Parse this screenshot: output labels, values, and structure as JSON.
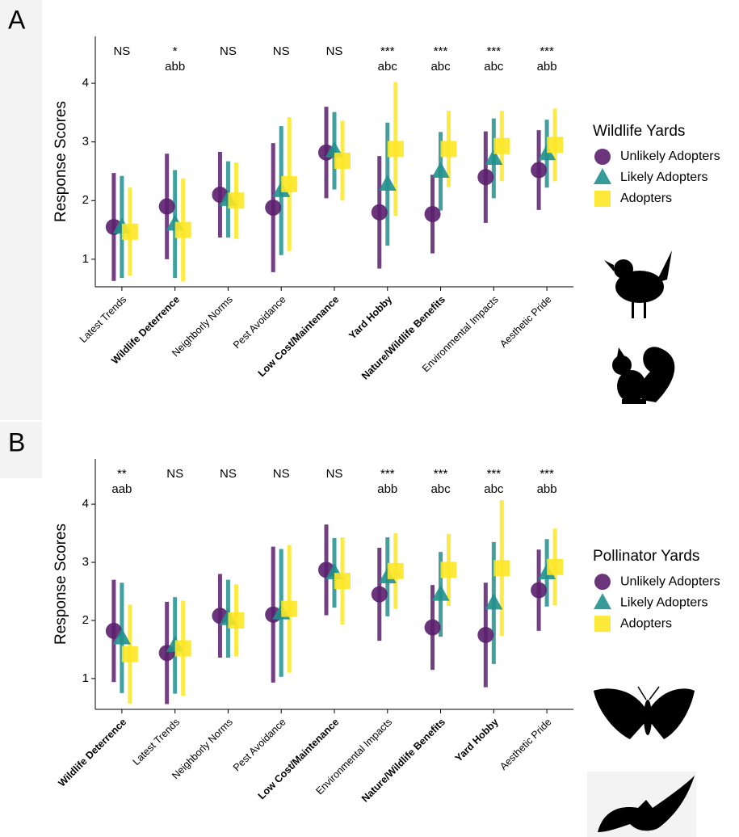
{
  "chart_data": [
    {
      "type": "pointrange",
      "panel": "A",
      "legend_title": "Wildlife Yards",
      "y_label": "Response Scores",
      "categories": [
        "Latest Trends",
        "Wildlife Deterrence",
        "Neighborly Norms",
        "Pest Avoidance",
        "Low Cost/Maintenance",
        "Yard Hobby",
        "Nature/Wildlife Benefits",
        "Environmental Impacts",
        "Aesthetic Pride"
      ],
      "bold": [
        false,
        true,
        false,
        false,
        true,
        true,
        true,
        false,
        false
      ],
      "significance": [
        "NS",
        "*",
        "NS",
        "NS",
        "NS",
        "***",
        "***",
        "***",
        "***"
      ],
      "letters": [
        null,
        "abb",
        null,
        null,
        null,
        "abc",
        "abc",
        "abc",
        "abb"
      ],
      "series": [
        {
          "name": "Unlikely Adopters",
          "color": "#5b1f6e",
          "marker": "circle",
          "values": [
            1.55,
            1.9,
            2.1,
            1.88,
            2.82,
            1.8,
            1.77,
            2.4,
            2.52
          ],
          "errors": [
            0.92,
            0.9,
            0.73,
            1.1,
            0.78,
            0.96,
            0.67,
            0.78,
            0.68
          ]
        },
        {
          "name": "Likely Adopters",
          "color": "#21908d",
          "marker": "triangle",
          "values": [
            1.55,
            1.6,
            2.02,
            2.17,
            2.85,
            2.28,
            2.5,
            2.72,
            2.8
          ],
          "errors": [
            0.87,
            0.92,
            0.65,
            1.1,
            0.66,
            1.05,
            0.67,
            0.68,
            0.58
          ]
        },
        {
          "name": "Adopters",
          "color": "#fde725",
          "marker": "square",
          "values": [
            1.47,
            1.5,
            2.0,
            2.28,
            2.68,
            2.88,
            2.88,
            2.93,
            2.95
          ],
          "errors": [
            0.75,
            0.88,
            0.65,
            1.14,
            0.68,
            1.14,
            0.65,
            0.6,
            0.62
          ]
        }
      ],
      "ylim": [
        0.53,
        4.8
      ],
      "yticks": [
        1,
        2,
        3,
        4
      ]
    },
    {
      "type": "pointrange",
      "panel": "B",
      "legend_title": "Pollinator Yards",
      "y_label": "Response Scores",
      "categories": [
        "Wildlife Deterrence",
        "Latest Trends",
        "Neighborly Norms",
        "Pest Avoidance",
        "Low Cost/Maintenance",
        "Environmental Impacts",
        "Nature/Wildlife Benefits",
        "Yard Hobby",
        "Aesthetic Pride"
      ],
      "bold": [
        true,
        false,
        false,
        false,
        true,
        false,
        true,
        true,
        false
      ],
      "significance": [
        "**",
        "NS",
        "NS",
        "NS",
        "NS",
        "***",
        "***",
        "***",
        "***"
      ],
      "letters": [
        "aab",
        null,
        null,
        null,
        null,
        "abb",
        "abc",
        "abc",
        "abb"
      ],
      "series": [
        {
          "name": "Unlikely Adopters",
          "color": "#5b1f6e",
          "marker": "circle",
          "values": [
            1.82,
            1.44,
            2.08,
            2.1,
            2.87,
            2.45,
            1.88,
            1.75,
            2.52
          ],
          "errors": [
            0.88,
            0.88,
            0.72,
            1.17,
            0.78,
            0.8,
            0.73,
            0.9,
            0.7
          ]
        },
        {
          "name": "Likely Adopters",
          "color": "#21908d",
          "marker": "triangle",
          "values": [
            1.7,
            1.57,
            2.03,
            2.13,
            2.82,
            2.75,
            2.45,
            2.3,
            2.82
          ],
          "errors": [
            0.95,
            0.83,
            0.67,
            1.1,
            0.6,
            0.68,
            0.73,
            1.05,
            0.58
          ]
        },
        {
          "name": "Adopters",
          "color": "#fde725",
          "marker": "square",
          "values": [
            1.42,
            1.52,
            2.0,
            2.2,
            2.68,
            2.85,
            2.87,
            2.9,
            2.92
          ],
          "errors": [
            0.85,
            0.82,
            0.62,
            1.1,
            0.75,
            0.65,
            0.62,
            1.17,
            0.66
          ]
        }
      ],
      "ylim": [
        0.47,
        4.78
      ],
      "yticks": [
        1,
        2,
        3,
        4
      ]
    }
  ]
}
